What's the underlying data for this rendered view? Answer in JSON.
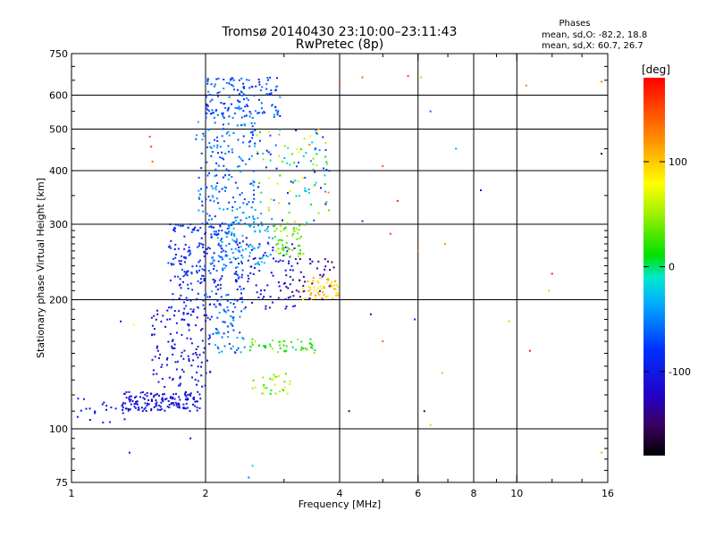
{
  "header": {
    "title_line1": "Tromsø 20140430 23:10:00–23:11:43",
    "title_line2": "RwPretec (8p)",
    "stats_heading": "Phases",
    "stats_line1": "mean, sd,O: -82.2, 18.8",
    "stats_line2": "mean, sd,X:  60.7, 26.7"
  },
  "chart_data": {
    "type": "scatter",
    "xlabel": "Frequency [MHz]",
    "ylabel": "Stationary phase Virtual Height [km]",
    "x_scale": "log",
    "y_scale": "log",
    "xlim": [
      1,
      16
    ],
    "ylim": [
      75,
      750
    ],
    "x_ticks": [
      {
        "value": 1,
        "label": "1"
      },
      {
        "value": 2,
        "label": "2"
      },
      {
        "value": 4,
        "label": "4"
      },
      {
        "value": 6,
        "label": "6"
      },
      {
        "value": 8,
        "label": "8"
      },
      {
        "value": 10,
        "label": "10"
      },
      {
        "value": 16,
        "label": "16"
      }
    ],
    "x_minor_ticks": [
      3,
      5,
      7,
      9,
      12,
      14
    ],
    "y_ticks": [
      {
        "value": 75,
        "label": "75"
      },
      {
        "value": 100,
        "label": "100"
      },
      {
        "value": 200,
        "label": "200"
      },
      {
        "value": 300,
        "label": "300"
      },
      {
        "value": 400,
        "label": "400"
      },
      {
        "value": 500,
        "label": "500"
      },
      {
        "value": 600,
        "label": "600"
      },
      {
        "value": 750,
        "label": "750"
      }
    ],
    "grid": true,
    "colorbar": {
      "label": "[deg]",
      "range": [
        -180,
        180
      ],
      "ticks": [
        {
          "value": 100,
          "label": "100"
        },
        {
          "value": 0,
          "label": "0"
        },
        {
          "value": -100,
          "label": "-100"
        }
      ]
    },
    "clusters": [
      {
        "name": "low-trace",
        "f": [
          1.3,
          1.95
        ],
        "h": [
          110,
          122
        ],
        "phase": [
          -118,
          -92
        ],
        "count": 150
      },
      {
        "name": "low-trace-2",
        "f": [
          1.02,
          1.35
        ],
        "h": [
          102,
          118
        ],
        "phase": [
          -112,
          -90
        ],
        "count": 22
      },
      {
        "name": "low-mid",
        "f": [
          1.5,
          2.05
        ],
        "h": [
          125,
          190
        ],
        "phase": [
          -120,
          -92
        ],
        "count": 130
      },
      {
        "name": "f2-main",
        "f": [
          1.65,
          2.2
        ],
        "h": [
          190,
          300
        ],
        "phase": [
          -110,
          -65
        ],
        "count": 190
      },
      {
        "name": "f2-o-left",
        "f": [
          2.05,
          2.45
        ],
        "h": [
          150,
          300
        ],
        "phase": [
          -80,
          -30
        ],
        "count": 130
      },
      {
        "name": "f2-upper",
        "f": [
          1.9,
          2.6
        ],
        "h": [
          300,
          520
        ],
        "phase": [
          -90,
          -30
        ],
        "count": 170
      },
      {
        "name": "top-cap",
        "f": [
          2.0,
          2.95
        ],
        "h": [
          530,
          660
        ],
        "phase": [
          -95,
          -45
        ],
        "count": 150
      },
      {
        "name": "cyan-block",
        "f": [
          2.25,
          2.85
        ],
        "h": [
          240,
          320
        ],
        "phase": [
          -50,
          -25
        ],
        "count": 70
      },
      {
        "name": "mid-dark",
        "f": [
          2.3,
          3.2
        ],
        "h": [
          190,
          280
        ],
        "phase": [
          -120,
          -90
        ],
        "count": 90
      },
      {
        "name": "green-band",
        "f": [
          2.85,
          3.35
        ],
        "h": [
          250,
          300
        ],
        "phase": [
          10,
          60
        ],
        "count": 55
      },
      {
        "name": "green-low",
        "f": [
          2.5,
          3.55
        ],
        "h": [
          150,
          162
        ],
        "phase": [
          0,
          50
        ],
        "count": 50
      },
      {
        "name": "yellow-cluster",
        "f": [
          3.3,
          4.0
        ],
        "h": [
          200,
          225
        ],
        "phase": [
          80,
          120
        ],
        "count": 55
      },
      {
        "name": "high-mixed",
        "f": [
          2.6,
          3.8
        ],
        "h": [
          300,
          500
        ],
        "phase": [
          -130,
          130
        ],
        "count": 110
      },
      {
        "name": "low-green",
        "f": [
          2.55,
          3.1
        ],
        "h": [
          120,
          135
        ],
        "phase": [
          10,
          70
        ],
        "count": 30
      },
      {
        "name": "dark-mid",
        "f": [
          3.0,
          3.9
        ],
        "h": [
          200,
          250
        ],
        "phase": [
          -150,
          -110
        ],
        "count": 45
      }
    ],
    "scattered_points": [
      {
        "f": 4.0,
        "h": 640,
        "phase": 150
      },
      {
        "f": 4.5,
        "h": 660,
        "phase": 140
      },
      {
        "f": 5.7,
        "h": 665,
        "phase": 150
      },
      {
        "f": 6.1,
        "h": 660,
        "phase": 105
      },
      {
        "f": 6.4,
        "h": 550,
        "phase": -60
      },
      {
        "f": 7.3,
        "h": 450,
        "phase": -40
      },
      {
        "f": 8.3,
        "h": 360,
        "phase": -120
      },
      {
        "f": 5.0,
        "h": 410,
        "phase": 150
      },
      {
        "f": 5.4,
        "h": 340,
        "phase": 160
      },
      {
        "f": 4.5,
        "h": 305,
        "phase": -80
      },
      {
        "f": 5.2,
        "h": 285,
        "phase": 155
      },
      {
        "f": 6.0,
        "h": 260,
        "phase": 130
      },
      {
        "f": 6.9,
        "h": 270,
        "phase": 120
      },
      {
        "f": 4.7,
        "h": 185,
        "phase": -110
      },
      {
        "f": 5.9,
        "h": 180,
        "phase": -90
      },
      {
        "f": 9.6,
        "h": 178,
        "phase": 100
      },
      {
        "f": 10.7,
        "h": 152,
        "phase": 170
      },
      {
        "f": 11.8,
        "h": 210,
        "phase": 100
      },
      {
        "f": 12.0,
        "h": 230,
        "phase": 170
      },
      {
        "f": 15.5,
        "h": 438,
        "phase": -170
      },
      {
        "f": 15.5,
        "h": 88,
        "phase": 110
      },
      {
        "f": 15.5,
        "h": 645,
        "phase": 130
      },
      {
        "f": 10.5,
        "h": 632,
        "phase": 130
      },
      {
        "f": 6.4,
        "h": 102,
        "phase": 100
      },
      {
        "f": 6.2,
        "h": 110,
        "phase": -150
      },
      {
        "f": 4.2,
        "h": 110,
        "phase": -150
      },
      {
        "f": 1.85,
        "h": 95,
        "phase": -120
      },
      {
        "f": 1.6,
        "h": 118,
        "phase": -110
      },
      {
        "f": 1.35,
        "h": 88,
        "phase": -100
      },
      {
        "f": 1.38,
        "h": 175,
        "phase": 80
      },
      {
        "f": 1.29,
        "h": 178,
        "phase": -110
      },
      {
        "f": 2.5,
        "h": 77,
        "phase": -50
      },
      {
        "f": 2.55,
        "h": 82,
        "phase": -20
      },
      {
        "f": 5.0,
        "h": 160,
        "phase": 140
      },
      {
        "f": 6.8,
        "h": 135,
        "phase": 110
      },
      {
        "f": 1.5,
        "h": 480,
        "phase": 150
      },
      {
        "f": 1.51,
        "h": 455,
        "phase": 160
      },
      {
        "f": 1.52,
        "h": 420,
        "phase": 140
      }
    ]
  }
}
